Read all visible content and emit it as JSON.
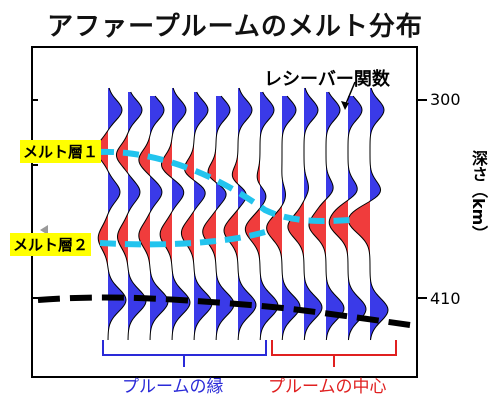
{
  "title": "アファープルームのメルト分布",
  "receiver_label": "レシーバー関数",
  "melt_layer_1": "メルト層１",
  "melt_layer_2": "メルト層２",
  "axis_label": "深さ（km）",
  "tick_300": "300",
  "tick_410": "410",
  "plume_edge": "プルームの縁",
  "plume_center": "プルームの中心",
  "colors": {
    "positive": "#3a3ae8",
    "negative": "#f03c3c",
    "dashed_cyan": "#22c4ee",
    "edge_text": "#2a2ad8",
    "center_text": "#e02020",
    "melt_bg": "#ffff00"
  }
}
